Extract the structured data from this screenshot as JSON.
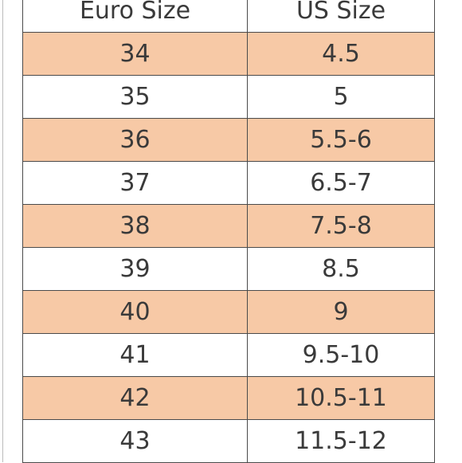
{
  "table": {
    "header": [
      "Euro Size",
      "US Size"
    ],
    "rows": [
      [
        "34",
        "4.5"
      ],
      [
        "35",
        "5"
      ],
      [
        "36",
        "5.5-6"
      ],
      [
        "37",
        "6.5-7"
      ],
      [
        "38",
        "7.5-8"
      ],
      [
        "39",
        "8.5"
      ],
      [
        "40",
        "9"
      ],
      [
        "41",
        "9.5-10"
      ],
      [
        "42",
        "10.5-11"
      ],
      [
        "43",
        "11.5-12"
      ]
    ]
  }
}
